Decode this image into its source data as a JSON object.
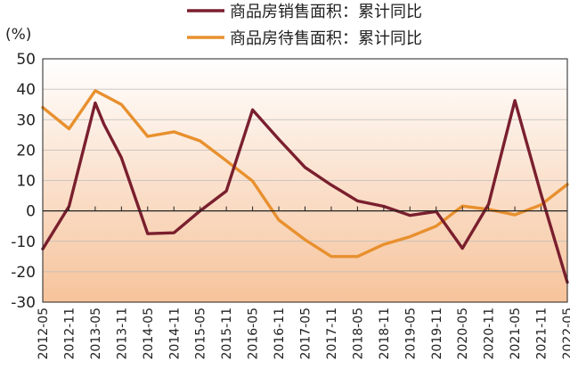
{
  "chart_data": {
    "type": "line",
    "title": "",
    "unit_label": "(%)",
    "xlabel": "",
    "ylabel": "",
    "ylim": [
      -30,
      50
    ],
    "yticks": [
      50,
      40,
      30,
      20,
      10,
      0,
      -10,
      -20,
      -30
    ],
    "grid": true,
    "legend_position": "top-center",
    "categories": [
      "2012-05",
      "2012-11",
      "2013-05",
      "2013-11",
      "2014-05",
      "2014-11",
      "2015-05",
      "2015-11",
      "2016-05",
      "2016-11",
      "2017-05",
      "2017-11",
      "2018-05",
      "2018-11",
      "2019-05",
      "2019-11",
      "2020-05",
      "2020-11",
      "2021-05",
      "2021-11",
      "2022-05"
    ],
    "series": [
      {
        "name": "商品房销售面积：累计同比",
        "color": "#7a1f2e",
        "points": [
          [
            "2012-05",
            -12.5
          ],
          [
            "2012-11",
            1.5
          ],
          [
            "2013-05",
            35.5
          ],
          [
            "2013-07",
            28.5
          ],
          [
            "2013-11",
            17.5
          ],
          [
            "2014-05",
            -7.5
          ],
          [
            "2014-11",
            -7.2
          ],
          [
            "2015-05",
            0
          ],
          [
            "2015-11",
            6.5
          ],
          [
            "2016-05",
            33.2
          ],
          [
            "2016-11",
            23.5
          ],
          [
            "2017-05",
            14.3
          ],
          [
            "2017-11",
            8.5
          ],
          [
            "2018-05",
            3.3
          ],
          [
            "2018-11",
            1.5
          ],
          [
            "2019-05",
            -1.5
          ],
          [
            "2019-11",
            -0.2
          ],
          [
            "2020-05",
            -12.3
          ],
          [
            "2020-11",
            2.2
          ],
          [
            "2021-05",
            36.3
          ],
          [
            "2021-11",
            5.5
          ],
          [
            "2022-05",
            -23.5
          ]
        ]
      },
      {
        "name": "商品房待售面积：累计同比",
        "color": "#e8902e",
        "points": [
          [
            "2012-05",
            34
          ],
          [
            "2012-11",
            27
          ],
          [
            "2013-05",
            39.5
          ],
          [
            "2013-11",
            35
          ],
          [
            "2014-05",
            24.5
          ],
          [
            "2014-11",
            26
          ],
          [
            "2015-05",
            23
          ],
          [
            "2015-11",
            16.5
          ],
          [
            "2016-05",
            9.8
          ],
          [
            "2016-11",
            -3
          ],
          [
            "2017-05",
            -9.5
          ],
          [
            "2017-11",
            -15
          ],
          [
            "2018-05",
            -15
          ],
          [
            "2018-11",
            -11
          ],
          [
            "2019-05",
            -8.5
          ],
          [
            "2019-11",
            -5
          ],
          [
            "2020-05",
            1.6
          ],
          [
            "2020-11",
            0.5
          ],
          [
            "2021-05",
            -1.3
          ],
          [
            "2021-11",
            2
          ],
          [
            "2022-05",
            8.7
          ]
        ]
      }
    ],
    "background_gradient": {
      "top": "#ffffff",
      "bottom": "#f6c39b"
    },
    "axis_color": "#222222",
    "grid_color": "#bbbbbb"
  }
}
